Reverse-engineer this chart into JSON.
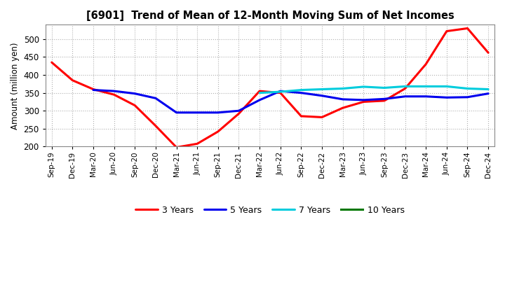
{
  "title": "[6901]  Trend of Mean of 12-Month Moving Sum of Net Incomes",
  "ylabel": "Amount (million yen)",
  "ylim": [
    200,
    540
  ],
  "yticks": [
    200,
    250,
    300,
    350,
    400,
    450,
    500
  ],
  "background_color": "#ffffff",
  "plot_bg_color": "#ffffff",
  "grid_color": "#b0b0b0",
  "x_labels": [
    "Sep-19",
    "Dec-19",
    "Mar-20",
    "Jun-20",
    "Sep-20",
    "Dec-20",
    "Mar-21",
    "Jun-21",
    "Sep-21",
    "Dec-21",
    "Mar-22",
    "Jun-22",
    "Sep-22",
    "Dec-22",
    "Mar-23",
    "Jun-23",
    "Sep-23",
    "Dec-23",
    "Mar-24",
    "Jun-24",
    "Sep-24",
    "Dec-24"
  ],
  "series": {
    "3 Years": {
      "color": "#ff0000",
      "values": [
        435,
        385,
        360,
        345,
        315,
        258,
        198,
        208,
        242,
        292,
        355,
        350,
        285,
        282,
        308,
        325,
        328,
        362,
        430,
        522,
        530,
        462
      ]
    },
    "5 Years": {
      "color": "#0000ee",
      "values": [
        null,
        null,
        358,
        355,
        348,
        335,
        295,
        295,
        295,
        300,
        330,
        355,
        350,
        342,
        332,
        330,
        333,
        340,
        340,
        337,
        338,
        348
      ]
    },
    "7 Years": {
      "color": "#00ccdd",
      "values": [
        null,
        null,
        null,
        null,
        null,
        null,
        null,
        null,
        null,
        null,
        350,
        353,
        358,
        360,
        362,
        367,
        364,
        368,
        368,
        368,
        362,
        360
      ]
    },
    "10 Years": {
      "color": "#007700",
      "values": [
        null,
        null,
        null,
        null,
        null,
        null,
        null,
        null,
        null,
        null,
        null,
        null,
        null,
        null,
        null,
        null,
        null,
        null,
        null,
        null,
        null,
        null
      ]
    }
  },
  "legend_entries": [
    "3 Years",
    "5 Years",
    "7 Years",
    "10 Years"
  ],
  "legend_colors": [
    "#ff0000",
    "#0000ee",
    "#00ccdd",
    "#007700"
  ],
  "figsize": [
    7.2,
    4.4
  ],
  "dpi": 100
}
